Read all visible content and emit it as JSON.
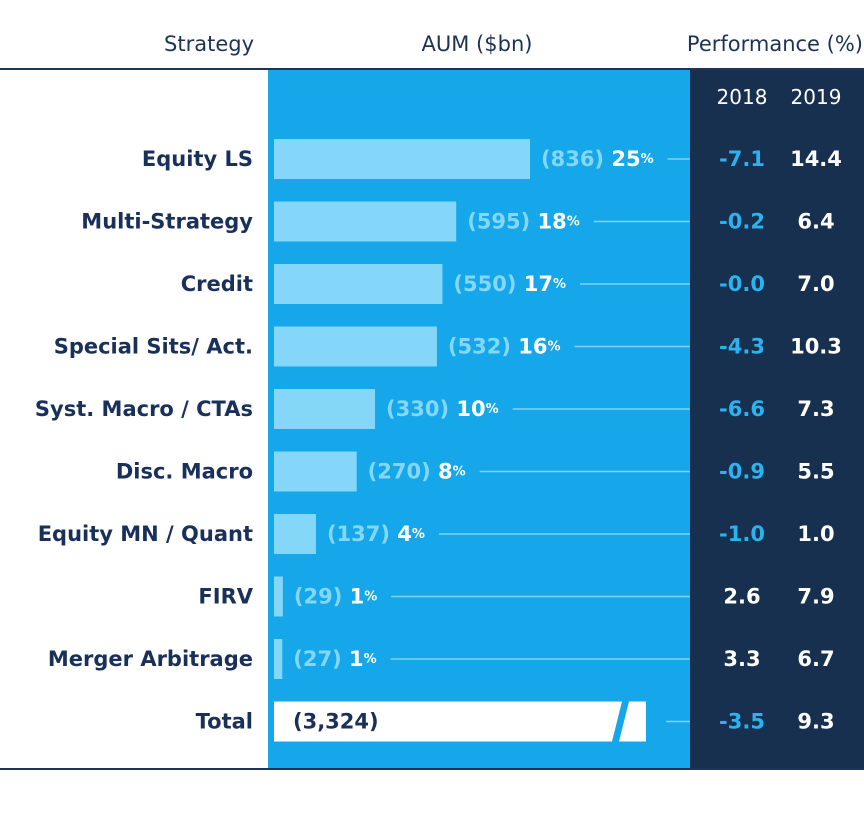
{
  "header": {
    "strategy": "Strategy",
    "aum": "AUM ($bn)",
    "performance": "Performance (%)"
  },
  "colors": {
    "panel_blue": "#15a7ea",
    "bar_light": "#84d7f9",
    "perf_navy": "#17304f",
    "label_navy": "#19305a",
    "neg_value": "#2bb3ef",
    "pos_value": "#ffffff",
    "leader_line": "#7fd3f6",
    "rule": "#1f3557"
  },
  "chart_data": {
    "type": "bar",
    "orientation": "horizontal",
    "title": "",
    "xlabel": "AUM ($bn)",
    "ylabel": "Strategy",
    "xlim": [
      0,
      836
    ],
    "categories": [
      "Equity LS",
      "Multi-Strategy",
      "Credit",
      "Special Sits/ Act.",
      "Syst. Macro / CTAs",
      "Disc. Macro",
      "Equity MN / Quant",
      "FIRV",
      "Merger Arbitrage"
    ],
    "series": [
      {
        "name": "AUM ($bn)",
        "values": [
          836,
          595,
          550,
          532,
          330,
          270,
          137,
          29,
          27
        ]
      }
    ],
    "aum_labels": [
      "(836)",
      "(595)",
      "(550)",
      "(532)",
      "(330)",
      "(270)",
      "(137)",
      "(29)",
      "(27)"
    ],
    "share_pct": [
      "25",
      "18",
      "17",
      "16",
      "10",
      "8",
      "4",
      "1",
      "1"
    ],
    "share_suffix": "%",
    "performance": {
      "title": "Performance (%)",
      "years": [
        "2018",
        "2019"
      ],
      "rows": [
        [
          "-7.1",
          "14.4"
        ],
        [
          "-0.2",
          "6.4"
        ],
        [
          "-0.0",
          "7.0"
        ],
        [
          "-4.3",
          "10.3"
        ],
        [
          "-6.6",
          "7.3"
        ],
        [
          "-0.9",
          "5.5"
        ],
        [
          "-1.0",
          "1.0"
        ],
        [
          "2.6",
          "7.9"
        ],
        [
          "3.3",
          "6.7"
        ]
      ]
    },
    "total": {
      "label": "Total",
      "aum": 3324,
      "aum_label": "(3,324)",
      "perf": [
        "-3.5",
        "9.3"
      ]
    }
  }
}
